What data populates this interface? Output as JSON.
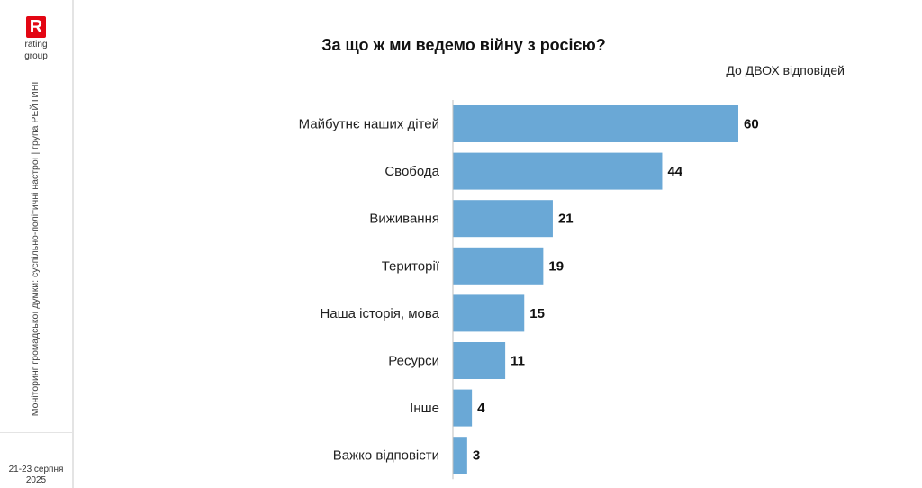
{
  "logo": {
    "mark": "R",
    "line1": "rating",
    "line2": "group"
  },
  "sidebar": {
    "vertical_text": "Моніторинг громадської думки: суспільно-політичні настрої | група РЕЙТИНГ",
    "date_line1": "21-23 серпня",
    "date_line2": "2025"
  },
  "colors": {
    "bar": "#6aa8d6",
    "brand": "#e30613"
  },
  "chart_data": {
    "type": "bar",
    "orientation": "horizontal",
    "title": "За що ж ми ведемо війну з росією?",
    "subtitle": "До ДВОХ відповідей",
    "categories": [
      "Майбутнє наших дітей",
      "Свобода",
      "Виживання",
      "Території",
      "Наша історія, мова",
      "Ресурси",
      "Інше",
      "Важко відповісти"
    ],
    "values": [
      60,
      44,
      21,
      19,
      15,
      11,
      4,
      3
    ],
    "xlim": [
      0,
      60
    ],
    "grid": false,
    "legend": false
  }
}
